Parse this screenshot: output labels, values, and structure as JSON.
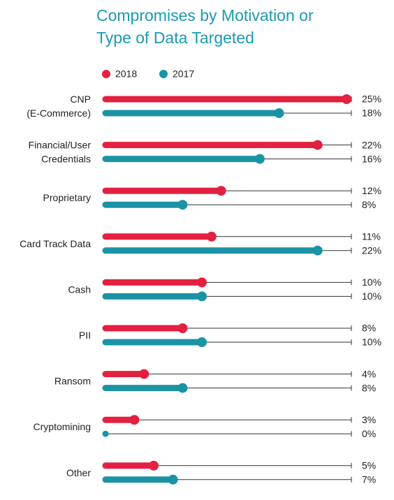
{
  "chart_data": {
    "type": "bar",
    "orientation": "horizontal",
    "title": "Compromises by Motivation or Type of Data Targeted",
    "categories": [
      "CNP\n(E-Commerce)",
      "Financial/User\nCredentials",
      "Proprietary",
      "Card Track Data",
      "Cash",
      "PII",
      "Ransom",
      "Cryptomining",
      "Other"
    ],
    "series": [
      {
        "name": "2018",
        "color": "#e3203f",
        "values": [
          25,
          22,
          12,
          11,
          10,
          8,
          4,
          3,
          5
        ],
        "value_labels": [
          "25%",
          "22%",
          "12%",
          "11%",
          "10%",
          "8%",
          "4%",
          "3%",
          "5%"
        ]
      },
      {
        "name": "2017",
        "color": "#1a93a5",
        "values": [
          18,
          16,
          8,
          22,
          10,
          10,
          8,
          0,
          7
        ],
        "value_labels": [
          "18%",
          "16%",
          "8%",
          "22%",
          "10%",
          "10%",
          "8%",
          "0%",
          "7%"
        ]
      }
    ],
    "xlim": [
      0,
      25.5
    ]
  }
}
